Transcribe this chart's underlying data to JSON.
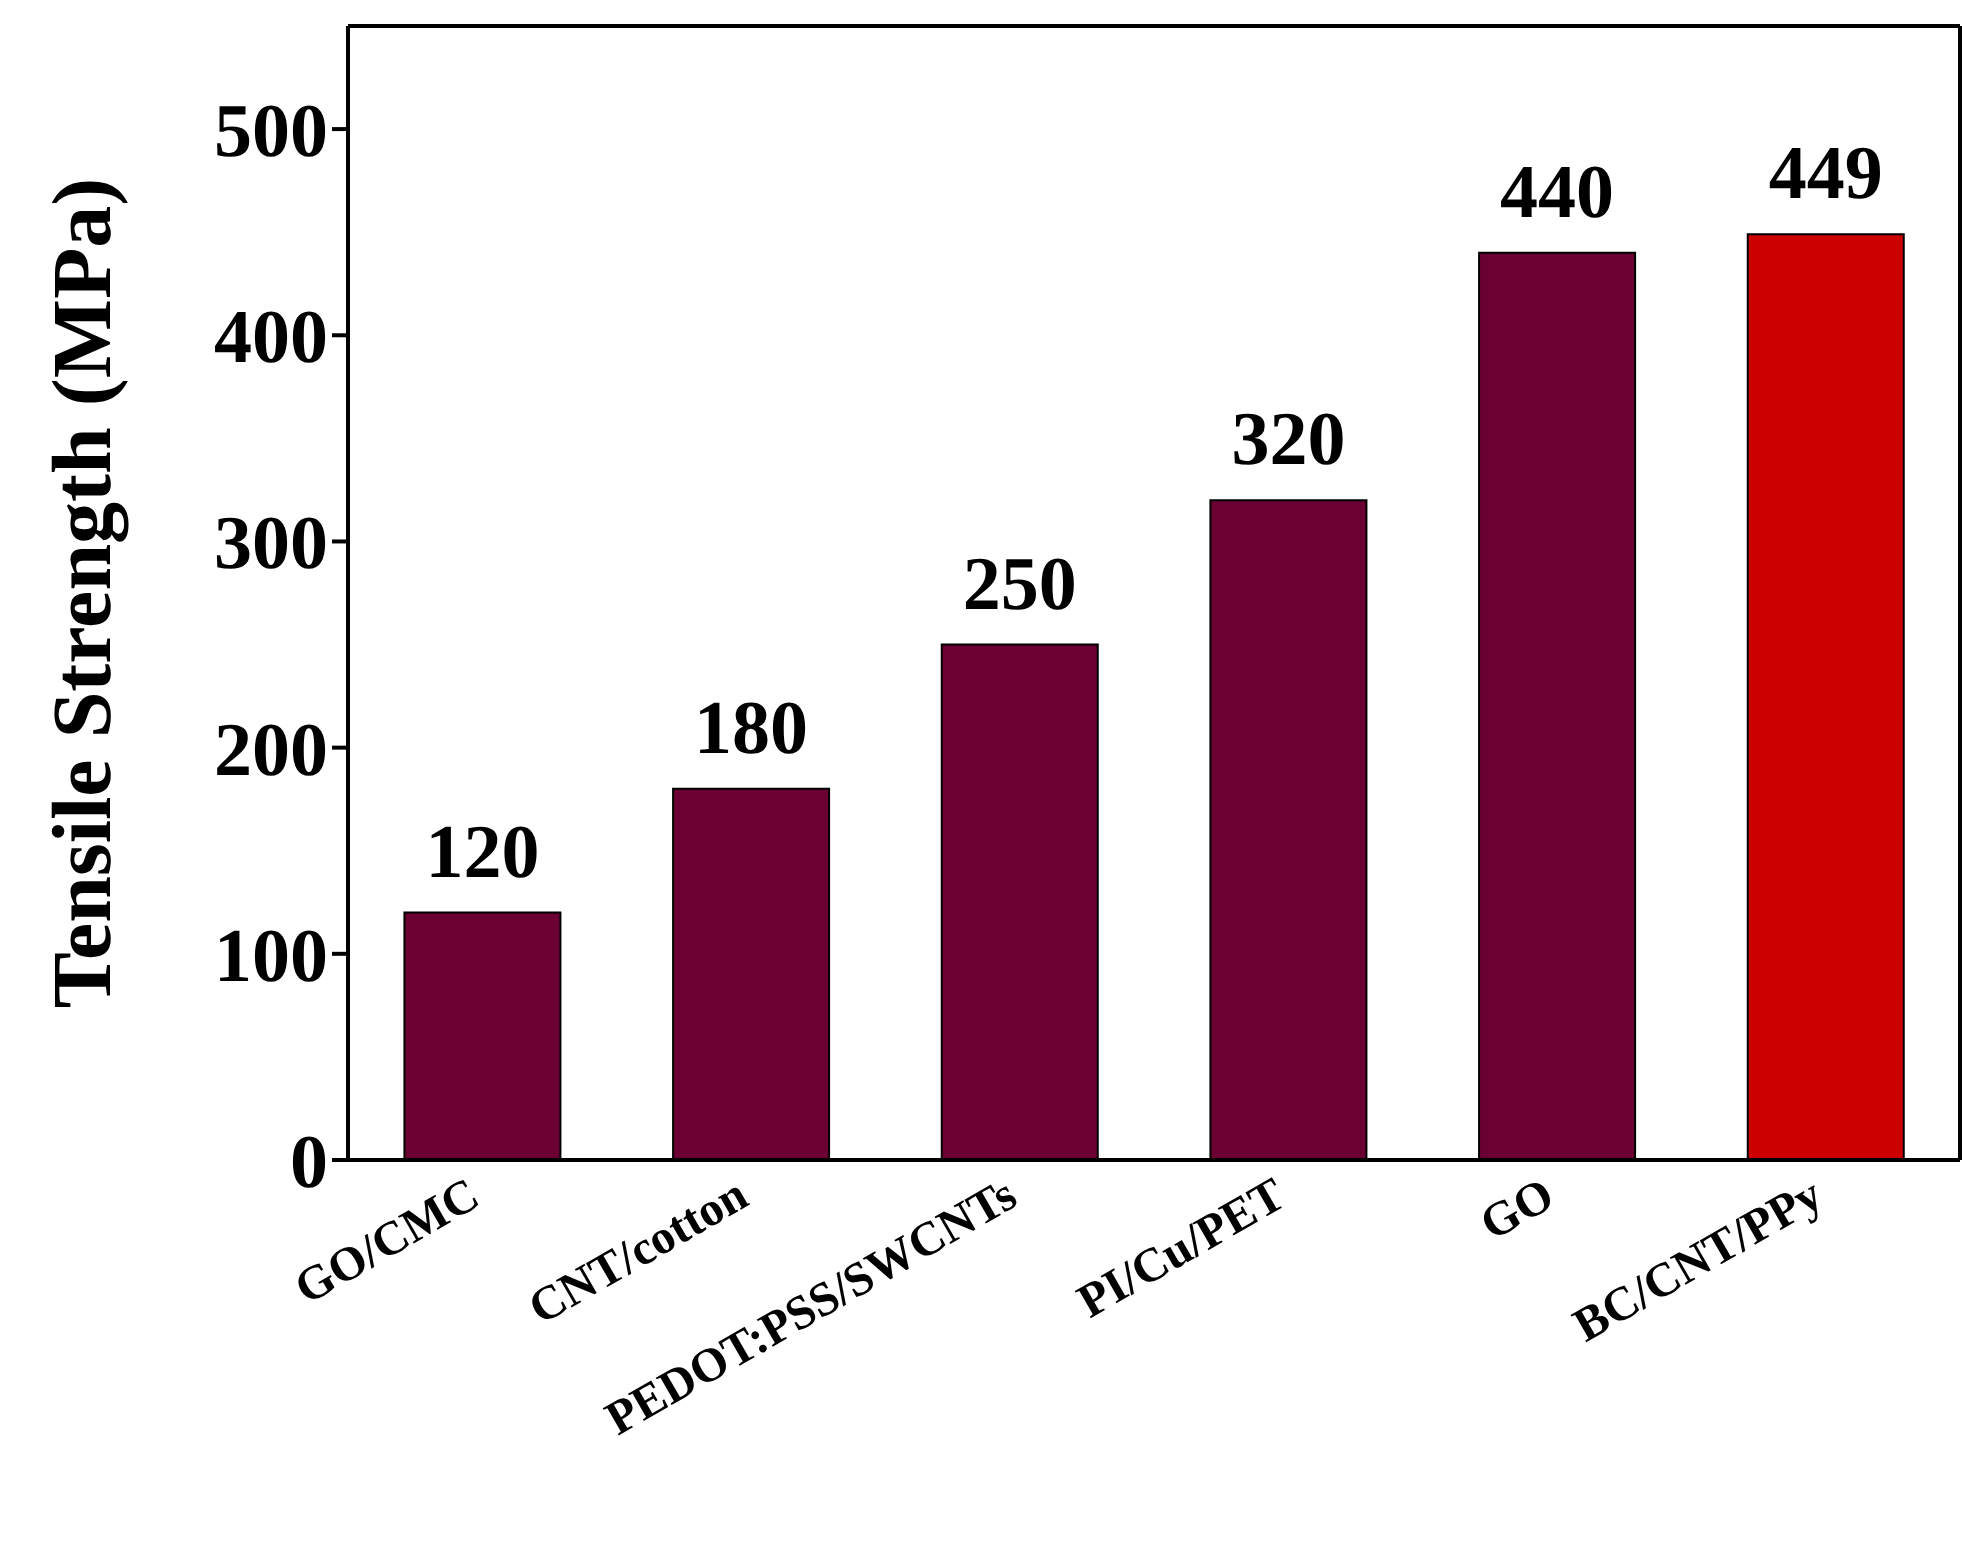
{
  "chart_data": {
    "type": "bar",
    "ylabel": "Tensile Strength (MPa)",
    "categories": [
      "GO/CMC",
      "CNT/cotton",
      "PEDOT:PSS/SWCNTs",
      "PI/Cu/PET",
      "GO",
      "BC/CNT/PPy"
    ],
    "values": [
      120,
      180,
      250,
      320,
      440,
      449
    ],
    "colors": [
      "#6b0033",
      "#6b0033",
      "#6b0033",
      "#6b0033",
      "#6b0033",
      "#cc0000"
    ],
    "ylim": [
      0,
      550
    ],
    "yticks": [
      0,
      100,
      200,
      300,
      400,
      500
    ],
    "data_labels": true,
    "grid": false
  }
}
